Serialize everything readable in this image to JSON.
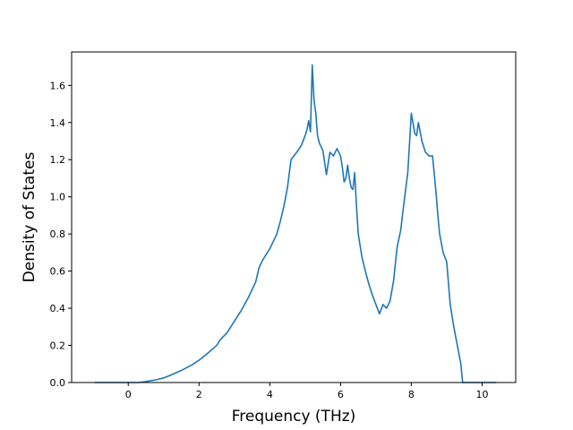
{
  "chart_data": {
    "type": "line",
    "title": "",
    "xlabel": "Frequency (THz)",
    "ylabel": "Density of States",
    "xlim": [
      -1.6,
      10.95
    ],
    "ylim": [
      0.0,
      1.78
    ],
    "x_ticks": [
      0,
      2,
      4,
      6,
      8,
      10
    ],
    "y_ticks": [
      0.0,
      0.2,
      0.4,
      0.6,
      0.8,
      1.0,
      1.2,
      1.4,
      1.6
    ],
    "x_tick_labels": [
      "0",
      "2",
      "4",
      "6",
      "8",
      "10"
    ],
    "y_tick_labels": [
      "0.0",
      "0.2",
      "0.4",
      "0.6",
      "0.8",
      "1.0",
      "1.2",
      "1.4",
      "1.6"
    ],
    "grid": false,
    "legend": "none",
    "line_color": "#1f77b4",
    "series": [
      {
        "x": [
          -0.95,
          -0.5,
          0.0,
          0.3,
          0.5,
          0.8,
          1.0,
          1.2,
          1.5,
          1.8,
          2.0,
          2.2,
          2.5,
          2.6,
          2.8,
          3.0,
          3.2,
          3.4,
          3.6,
          3.7,
          3.8,
          4.0,
          4.1,
          4.2,
          4.3,
          4.4,
          4.5,
          4.6,
          4.8,
          4.9,
          5.0,
          5.05,
          5.1,
          5.15,
          5.2,
          5.25,
          5.3,
          5.35,
          5.4,
          5.5,
          5.6,
          5.7,
          5.8,
          5.9,
          6.0,
          6.05,
          6.1,
          6.15,
          6.2,
          6.25,
          6.3,
          6.35,
          6.4,
          6.45,
          6.5,
          6.6,
          6.7,
          6.8,
          6.9,
          7.0,
          7.1,
          7.2,
          7.3,
          7.4,
          7.5,
          7.6,
          7.7,
          7.8,
          7.9,
          8.0,
          8.1,
          8.15,
          8.2,
          8.25,
          8.3,
          8.35,
          8.4,
          8.5,
          8.6,
          8.7,
          8.75,
          8.8,
          8.9,
          9.0,
          9.1,
          9.2,
          9.3,
          9.4,
          9.45,
          9.5,
          9.7,
          10.0,
          10.4
        ],
        "y": [
          0.0,
          0.0,
          0.0,
          0.0,
          0.005,
          0.015,
          0.025,
          0.04,
          0.065,
          0.095,
          0.12,
          0.15,
          0.2,
          0.23,
          0.27,
          0.33,
          0.39,
          0.46,
          0.54,
          0.62,
          0.66,
          0.72,
          0.76,
          0.8,
          0.87,
          0.95,
          1.05,
          1.2,
          1.25,
          1.28,
          1.33,
          1.36,
          1.41,
          1.35,
          1.71,
          1.52,
          1.45,
          1.33,
          1.29,
          1.25,
          1.12,
          1.24,
          1.22,
          1.26,
          1.22,
          1.16,
          1.08,
          1.1,
          1.17,
          1.1,
          1.05,
          1.04,
          1.13,
          0.95,
          0.8,
          0.68,
          0.6,
          0.53,
          0.47,
          0.42,
          0.37,
          0.42,
          0.4,
          0.44,
          0.55,
          0.73,
          0.82,
          0.98,
          1.13,
          1.45,
          1.34,
          1.33,
          1.4,
          1.35,
          1.3,
          1.27,
          1.24,
          1.22,
          1.22,
          1.02,
          0.9,
          0.8,
          0.7,
          0.65,
          0.42,
          0.3,
          0.2,
          0.1,
          0.0,
          0.0,
          0.0,
          0.0,
          0.0
        ]
      }
    ]
  }
}
